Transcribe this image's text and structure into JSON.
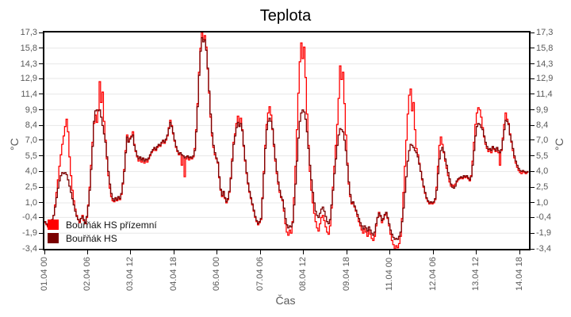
{
  "title": "Teplota",
  "axes": {
    "x_title": "Čas",
    "y_title_left": "°C",
    "y_title_right": "°C",
    "y_ticks": [
      "17,3",
      "15,8",
      "14,3",
      "12,9",
      "11,4",
      "9,9",
      "8,4",
      "7,0",
      "5,5",
      "4,0",
      "2,5",
      "1,0",
      "-0,4",
      "-1,9",
      "-3,4"
    ],
    "y_tick_values": [
      17.3,
      15.8,
      14.3,
      12.9,
      11.4,
      9.9,
      8.4,
      7.0,
      5.5,
      4.0,
      2.5,
      1.0,
      -0.4,
      -1.9,
      -3.4
    ],
    "x_ticks": [
      {
        "label": "01.04 00",
        "hour": 0
      },
      {
        "label": "02.04 06",
        "hour": 30
      },
      {
        "label": "03.04 12",
        "hour": 60
      },
      {
        "label": "04.04 18",
        "hour": 90
      },
      {
        "label": "06.04 00",
        "hour": 120
      },
      {
        "label": "07.04 06",
        "hour": 150
      },
      {
        "label": "08.04 12",
        "hour": 180
      },
      {
        "label": "09.04 18",
        "hour": 210
      },
      {
        "label": "11.04 00",
        "hour": 240
      },
      {
        "label": "12.04 06",
        "hour": 270
      },
      {
        "label": "13.04 12",
        "hour": 300
      },
      {
        "label": "14.04 18",
        "hour": 330
      }
    ]
  },
  "legend": [
    {
      "label": "Bouřňák HS přízemní",
      "color": "#ff0000"
    },
    {
      "label": "Bouřňák HS",
      "color": "#7b0000"
    }
  ],
  "colors": {
    "grid": "#e7e7e7",
    "axis": "#000000",
    "tick_text": "#595959",
    "title_text": "#000000",
    "series_prizemni": "#ff0000",
    "series_hs": "#7b0000",
    "background": "#ffffff"
  },
  "chart_data": {
    "type": "line",
    "title": "Teplota",
    "xlabel": "Čas",
    "ylabel": "°C",
    "ylim": [
      -3.4,
      17.3
    ],
    "grid": "horizontal",
    "legend_position": "bottom-left-inside",
    "x_unit": "hours since 01.04 00:00",
    "x_range": [
      0,
      336
    ],
    "series": [
      {
        "name": "Bouřňák HS přízemní",
        "color": "#ff0000",
        "values": [
          -0.9,
          -1.1,
          -1.3,
          -1.2,
          -1.0,
          -0.6,
          -0.2,
          0.8,
          2.0,
          3.2,
          4.5,
          5.6,
          6.6,
          7.4,
          8.3,
          9.0,
          7.8,
          5.4,
          3.6,
          2.2,
          1.2,
          0.4,
          -0.2,
          -0.6,
          -0.9,
          -0.5,
          -0.2,
          -0.7,
          -1.0,
          -0.4,
          0.8,
          2.5,
          4.6,
          6.8,
          8.6,
          9.4,
          8.7,
          9.9,
          12.6,
          10.6,
          11.6,
          8.8,
          7.0,
          5.2,
          3.6,
          2.4,
          1.6,
          1.2,
          1.1,
          1.4,
          1.2,
          1.5,
          1.3,
          1.8,
          2.8,
          4.2,
          6.0,
          7.5,
          6.9,
          7.2,
          7.4,
          7.8,
          6.6,
          5.9,
          5.4,
          5.0,
          5.3,
          4.9,
          5.2,
          4.8,
          5.1,
          4.9,
          5.2,
          5.5,
          5.8,
          6.0,
          6.2,
          6.0,
          6.3,
          6.5,
          6.4,
          6.7,
          6.9,
          6.7,
          7.0,
          7.4,
          8.2,
          8.9,
          8.4,
          7.6,
          6.9,
          6.3,
          5.9,
          5.6,
          5.8,
          4.6,
          5.5,
          3.5,
          5.2,
          5.4,
          5.1,
          5.3,
          5.2,
          5.4,
          6.2,
          8.0,
          10.5,
          13.5,
          15.8,
          17.3,
          16.6,
          17.0,
          15.9,
          13.8,
          11.5,
          9.2,
          7.4,
          6.3,
          5.6,
          5.2,
          4.8,
          3.4,
          2.2,
          1.6,
          2.0,
          1.4,
          1.0,
          1.3,
          2.0,
          3.4,
          5.2,
          6.8,
          7.6,
          8.6,
          9.3,
          8.4,
          9.1,
          8.0,
          6.4,
          5.0,
          3.8,
          2.8,
          2.0,
          1.4,
          0.8,
          0.2,
          -0.4,
          -0.8,
          -1.1,
          -0.9,
          -0.6,
          1.5,
          4.0,
          6.5,
          8.5,
          9.6,
          10.2,
          9.4,
          8.0,
          6.4,
          5.0,
          3.8,
          2.8,
          2.0,
          1.5,
          1.2,
          0.2,
          -1.0,
          -1.8,
          -2.1,
          -1.6,
          -1.9,
          -0.8,
          1.5,
          4.5,
          8.0,
          11.5,
          14.5,
          16.3,
          14.8,
          15.9,
          13.0,
          9.5,
          6.5,
          4.0,
          2.2,
          1.0,
          0.0,
          -0.8,
          -1.4,
          -1.7,
          -1.0,
          -0.4,
          -0.2,
          -0.7,
          -1.3,
          -1.8,
          -2.0,
          -1.2,
          0.5,
          2.5,
          4.5,
          6.5,
          8.5,
          11.0,
          14.1,
          12.8,
          13.5,
          10.5,
          7.5,
          4.8,
          2.8,
          1.6,
          0.9,
          1.0,
          0.6,
          0.2,
          -0.3,
          -0.8,
          -1.2,
          -1.6,
          -1.9,
          -1.5,
          -1.8,
          -2.2,
          -1.6,
          -2.0,
          -2.4,
          -2.6,
          -2.2,
          -1.2,
          -0.4,
          0.1,
          -0.3,
          -0.9,
          -0.6,
          -0.2,
          0.0,
          -0.5,
          -1.2,
          -2.0,
          -2.6,
          -3.0,
          -3.4,
          -3.1,
          -3.3,
          -2.9,
          -2.2,
          -0.5,
          2.0,
          4.5,
          7.0,
          9.5,
          11.3,
          11.9,
          9.8,
          10.6,
          8.0,
          6.2,
          5.6,
          4.8,
          4.0,
          3.2,
          2.5,
          1.9,
          1.4,
          1.1,
          0.9,
          1.0,
          0.9,
          1.0,
          1.3,
          2.5,
          4.5,
          6.5,
          7.3,
          6.6,
          5.8,
          5.0,
          4.3,
          3.6,
          3.0,
          2.6,
          2.7,
          2.6,
          2.8,
          3.0,
          3.2,
          3.3,
          3.4,
          3.3,
          3.5,
          3.4,
          3.5,
          3.3,
          3.1,
          3.6,
          5.0,
          6.8,
          8.5,
          9.6,
          10.1,
          9.9,
          9.2,
          8.2,
          7.3,
          6.6,
          6.2,
          5.9,
          6.1,
          5.8,
          6.3,
          6.1,
          5.9,
          6.2,
          5.8,
          4.6,
          6.0,
          7.2,
          8.5,
          9.6,
          9.0,
          8.6,
          7.6,
          6.8,
          6.0,
          5.3,
          4.8,
          4.4,
          4.1,
          3.9,
          3.8,
          4.0,
          3.9,
          3.8,
          3.9,
          3.9
        ]
      },
      {
        "name": "Bouřňák HS",
        "color": "#7b0000",
        "values": [
          -0.8,
          -1.0,
          -1.2,
          -1.1,
          -0.9,
          -0.6,
          -0.2,
          0.6,
          1.5,
          2.4,
          3.1,
          3.6,
          3.9,
          3.8,
          3.9,
          3.7,
          3.2,
          2.6,
          2.0,
          1.4,
          0.8,
          0.2,
          -0.3,
          -0.6,
          -0.8,
          -0.5,
          -0.3,
          -0.6,
          -0.9,
          -0.3,
          0.7,
          2.2,
          4.2,
          6.4,
          8.8,
          9.8,
          9.9,
          9.8,
          9.9,
          9.2,
          8.4,
          7.6,
          6.8,
          5.4,
          4.0,
          2.8,
          1.9,
          1.4,
          1.2,
          1.5,
          1.3,
          1.6,
          1.4,
          1.9,
          2.9,
          4.0,
          5.8,
          7.3,
          6.8,
          7.1,
          7.3,
          7.5,
          6.5,
          6.0,
          5.5,
          5.2,
          5.4,
          5.1,
          5.3,
          5.0,
          5.2,
          5.1,
          5.3,
          5.6,
          5.9,
          6.1,
          6.3,
          6.1,
          6.4,
          6.6,
          6.5,
          6.8,
          7.0,
          6.8,
          7.1,
          7.5,
          8.1,
          8.7,
          8.3,
          7.7,
          7.0,
          6.4,
          6.0,
          5.7,
          5.8,
          5.6,
          5.5,
          5.3,
          5.4,
          5.5,
          5.3,
          5.4,
          5.3,
          5.5,
          6.0,
          7.8,
          10.2,
          13.2,
          15.5,
          16.8,
          16.4,
          16.6,
          15.6,
          13.9,
          11.7,
          9.5,
          7.7,
          6.5,
          5.8,
          5.3,
          4.9,
          3.5,
          2.3,
          1.7,
          2.1,
          1.5,
          1.1,
          1.4,
          2.1,
          3.3,
          5.0,
          6.6,
          7.4,
          8.2,
          8.7,
          8.3,
          8.6,
          7.9,
          6.5,
          5.1,
          3.9,
          2.9,
          2.1,
          1.5,
          0.9,
          0.3,
          -0.3,
          -0.7,
          -1.0,
          -0.8,
          -0.5,
          1.4,
          3.8,
          6.2,
          8.0,
          8.8,
          9.1,
          8.8,
          8.1,
          6.6,
          5.2,
          4.0,
          3.0,
          2.2,
          1.6,
          1.3,
          0.5,
          -0.5,
          -1.1,
          -1.4,
          -1.2,
          -1.3,
          -0.9,
          0.8,
          2.8,
          5.0,
          7.2,
          8.8,
          9.6,
          9.9,
          9.7,
          9.0,
          7.8,
          6.2,
          4.6,
          3.2,
          2.0,
          1.0,
          0.2,
          -0.2,
          -0.4,
          0.0,
          0.4,
          0.6,
          0.2,
          -0.3,
          -0.8,
          -1.0,
          -0.6,
          0.8,
          2.2,
          3.8,
          5.2,
          6.5,
          7.5,
          8.1,
          8.0,
          7.8,
          7.0,
          6.0,
          4.6,
          3.0,
          1.8,
          1.0,
          1.1,
          0.7,
          0.3,
          -0.1,
          -0.5,
          -0.9,
          -1.2,
          -1.5,
          -1.2,
          -1.4,
          -1.7,
          -1.3,
          -1.6,
          -1.9,
          -2.1,
          -1.8,
          -1.0,
          -0.4,
          0.0,
          -0.2,
          -0.7,
          -0.5,
          -0.1,
          0.1,
          -0.4,
          -1.0,
          -1.6,
          -2.0,
          -2.3,
          -2.5,
          -2.4,
          -2.5,
          -2.2,
          -1.8,
          -0.8,
          0.5,
          2.0,
          3.5,
          5.0,
          6.0,
          6.6,
          6.5,
          6.3,
          6.0,
          5.8,
          5.4,
          4.7,
          4.0,
          3.3,
          2.6,
          2.0,
          1.5,
          1.2,
          1.0,
          1.1,
          1.0,
          1.1,
          1.4,
          2.2,
          3.8,
          5.2,
          6.0,
          6.3,
          5.9,
          5.2,
          4.6,
          3.9,
          3.3,
          2.8,
          2.5,
          2.4,
          2.6,
          3.1,
          3.3,
          3.4,
          3.5,
          3.4,
          3.6,
          3.5,
          3.6,
          3.4,
          3.2,
          3.5,
          4.6,
          6.0,
          7.4,
          8.3,
          8.6,
          8.5,
          8.2,
          8.0,
          7.4,
          6.8,
          6.4,
          6.1,
          6.2,
          6.0,
          6.4,
          6.2,
          6.0,
          6.3,
          6.0,
          5.8,
          6.1,
          7.0,
          8.0,
          8.9,
          8.8,
          8.5,
          7.5,
          6.9,
          6.2,
          5.5,
          5.0,
          4.6,
          4.3,
          4.1,
          4.0,
          4.1,
          4.0,
          3.9,
          4.0,
          3.9
        ]
      }
    ]
  }
}
